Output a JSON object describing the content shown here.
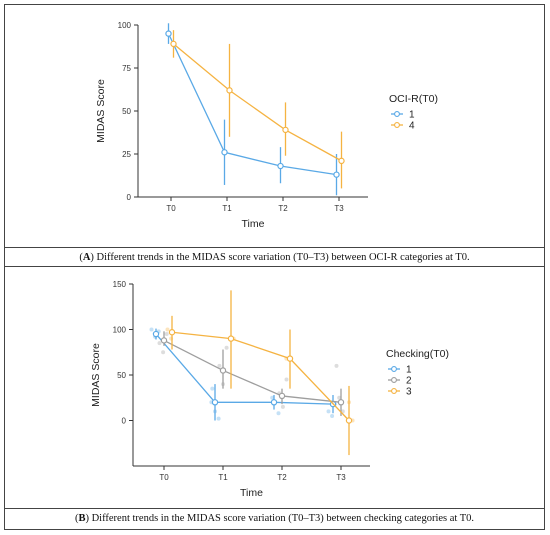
{
  "chart_data": [
    {
      "type": "line",
      "panel": "A",
      "title": "",
      "xlabel": "Time",
      "ylabel": "MIDAS Score",
      "categories": [
        "T0",
        "T1",
        "T2",
        "T3"
      ],
      "ylim": [
        0,
        100
      ],
      "yticks": [
        0,
        25,
        50,
        75,
        100
      ],
      "legend_title": "OCI-R(T0)",
      "legend_position": "right",
      "grid": false,
      "series": [
        {
          "name": "1",
          "color": "#5aa9e6",
          "values": [
            95,
            26,
            18,
            13
          ],
          "err_low": [
            89,
            7,
            8,
            1
          ],
          "err_high": [
            101,
            45,
            29,
            25
          ],
          "points": []
        },
        {
          "name": "4",
          "color": "#f5b342",
          "values": [
            89,
            62,
            39,
            21
          ],
          "err_low": [
            81,
            35,
            24,
            5
          ],
          "err_high": [
            97,
            89,
            55,
            38
          ],
          "points": []
        }
      ],
      "caption_letter": "A",
      "caption_text": " Different trends in the MIDAS score variation (T0–T3) between OCI-R categories at T0."
    },
    {
      "type": "line",
      "panel": "B",
      "title": "",
      "xlabel": "Time",
      "ylabel": "MIDAS Score",
      "categories": [
        "T0",
        "T1",
        "T2",
        "T3"
      ],
      "ylim": [
        -50,
        150
      ],
      "yticks": [
        0,
        50,
        100,
        150
      ],
      "legend_title": "Checking(T0)",
      "legend_position": "right",
      "grid": false,
      "series": [
        {
          "name": "1",
          "color": "#5aa9e6",
          "values": [
            95,
            20,
            20,
            18
          ],
          "err_low": [
            89,
            0,
            12,
            8
          ],
          "err_high": [
            101,
            40,
            28,
            28
          ],
          "points": [
            [
              0,
              100
            ],
            [
              0,
              92
            ],
            [
              0,
              98
            ],
            [
              1,
              20
            ],
            [
              1,
              10
            ],
            [
              1,
              2
            ],
            [
              1,
              35
            ],
            [
              2,
              20
            ],
            [
              2,
              8
            ],
            [
              2,
              25
            ],
            [
              3,
              18
            ],
            [
              3,
              10
            ],
            [
              3,
              5
            ]
          ]
        },
        {
          "name": "2",
          "color": "#9e9e9e",
          "values": [
            88,
            55,
            27,
            20
          ],
          "err_low": [
            82,
            35,
            18,
            5
          ],
          "err_high": [
            98,
            78,
            35,
            35
          ],
          "points": [
            [
              0,
              85
            ],
            [
              0,
              75
            ],
            [
              0,
              95
            ],
            [
              1,
              60
            ],
            [
              1,
              40
            ],
            [
              1,
              80
            ],
            [
              2,
              30
            ],
            [
              2,
              15
            ],
            [
              2,
              45
            ],
            [
              3,
              25
            ],
            [
              3,
              10
            ],
            [
              3,
              60
            ]
          ]
        },
        {
          "name": "3",
          "color": "#f5b342",
          "values": [
            97,
            90,
            68,
            0
          ],
          "err_low": [
            78,
            35,
            35,
            -38
          ],
          "err_high": [
            115,
            143,
            100,
            38
          ],
          "points": [
            [
              0,
              100
            ],
            [
              0,
              90
            ],
            [
              1,
              90
            ],
            [
              2,
              68
            ],
            [
              3,
              20
            ],
            [
              3,
              0
            ]
          ]
        }
      ],
      "caption_letter": "B",
      "caption_text": " Different trends in the MIDAS score variation (T0–T3) between checking categories at T0."
    }
  ]
}
